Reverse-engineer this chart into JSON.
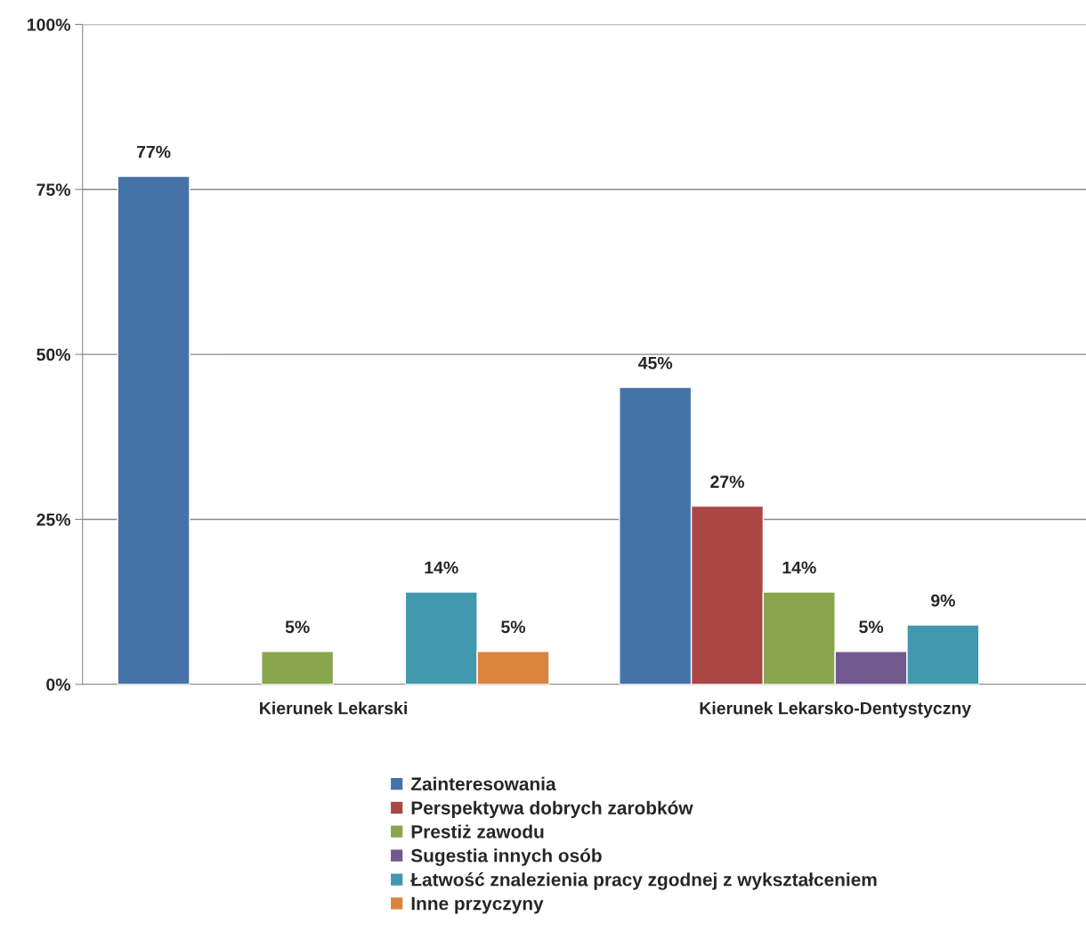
{
  "chart_data": {
    "type": "bar",
    "categories": [
      "Kierunek Lekarski",
      "Kierunek Lekarsko-Dentystyczny"
    ],
    "series": [
      {
        "name": "Zainteresowania",
        "color": "#4572a7",
        "values": [
          77,
          45
        ],
        "value_labels": [
          "77%",
          "45%"
        ]
      },
      {
        "name": "Perspektywa dobrych zarobków",
        "color": "#aa4643",
        "values": [
          null,
          27
        ],
        "value_labels": [
          null,
          "27%"
        ]
      },
      {
        "name": "Prestiż zawodu",
        "color": "#89a54e",
        "values": [
          5,
          14
        ],
        "value_labels": [
          "5%",
          "14%"
        ]
      },
      {
        "name": "Sugestia innych osób",
        "color": "#71588f",
        "values": [
          null,
          5
        ],
        "value_labels": [
          null,
          "5%"
        ]
      },
      {
        "name": "Łatwość znalezienia pracy zgodnej z wykształceniem",
        "color": "#4198af",
        "values": [
          14,
          9
        ],
        "value_labels": [
          "14%",
          "9%"
        ]
      },
      {
        "name": "Inne przyczyny",
        "color": "#db843d",
        "values": [
          5,
          null
        ],
        "value_labels": [
          "5%",
          null
        ]
      }
    ],
    "ylim": [
      0,
      100
    ],
    "yticks": [
      {
        "value": 0,
        "label": "0%"
      },
      {
        "value": 25,
        "label": "25%"
      },
      {
        "value": 50,
        "label": "50%"
      },
      {
        "value": 75,
        "label": "75%"
      },
      {
        "value": 100,
        "label": "100%"
      }
    ],
    "grid": "y",
    "legend": "bottom"
  }
}
